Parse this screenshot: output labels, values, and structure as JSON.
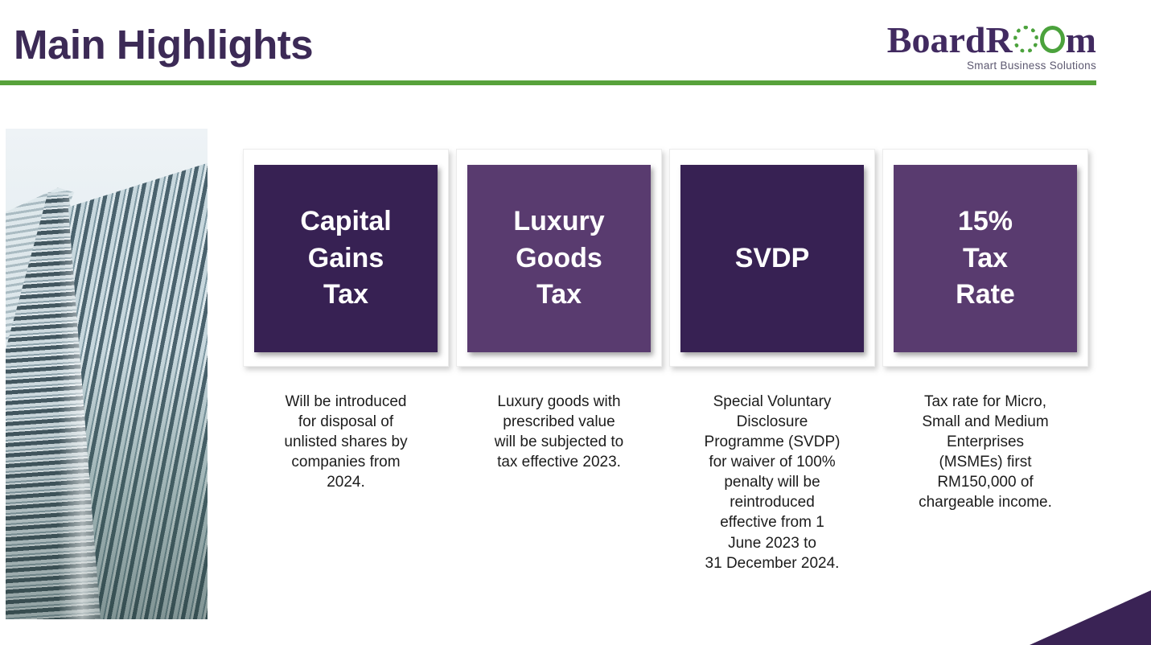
{
  "header": {
    "title": "Main Highlights",
    "logo": {
      "brand": "BoardRoom",
      "prefix": "BoardR",
      "suffix": "m",
      "tagline": "Smart Business Solutions"
    }
  },
  "colors": {
    "title_purple": "#3c2a56",
    "accent_green": "#57a23b",
    "logo_green": "#4ba23c",
    "tile_dark_purple": "#372153",
    "tile_medium_purple": "#593b6f",
    "corner_triangle_purple": "#3a2355"
  },
  "cards": [
    {
      "title": "Capital\nGains\nTax",
      "tile_color": "#372153",
      "description": "Will be introduced\nfor disposal of\nunlisted shares by\ncompanies from\n2024."
    },
    {
      "title": "Luxury\nGoods\nTax",
      "tile_color": "#593b6f",
      "description": "Luxury goods with\nprescribed value\nwill be subjected to\ntax effective 2023."
    },
    {
      "title": "SVDP",
      "tile_color": "#372153",
      "description": "Special Voluntary\nDisclosure\nProgramme (SVDP)\nfor waiver of 100%\npenalty will be\nreintroduced\neffective from 1\nJune 2023 to\n31 December 2024."
    },
    {
      "title": "15%\nTax\nRate",
      "tile_color": "#593b6f",
      "description": "Tax rate for Micro,\nSmall and Medium\nEnterprises\n(MSMEs) first\nRM150,000 of\nchargeable income."
    }
  ]
}
